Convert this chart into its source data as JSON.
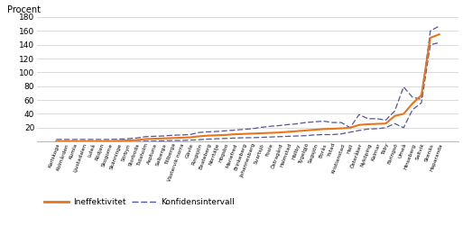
{
  "categories": [
    "Karlskoga",
    "Kolmården",
    "Kumla",
    "Ljustadalen",
    "Luleå",
    "Rödjan",
    "Skogome",
    "Skänninge",
    "Sörbyn",
    "Storboda",
    "Tidaholm",
    "Asptuna",
    "Salberga",
    "Tillberga",
    "Västervik norra",
    "Gävle",
    "Ringsjön",
    "Beateberg",
    "Norrtälje",
    "Högsbo",
    "Mariefred",
    "Brinkeberg",
    "Johannesberg",
    "Svartsjö",
    "Fosie",
    "Östragård",
    "Halmstad",
    "Hällby",
    "Tygelgjö",
    "Sagsjön",
    "Borås",
    "Ystad",
    "Kristianstad",
    "Hall",
    "Österåker",
    "Nyköping",
    "Kalmar",
    "Täby",
    "Färingsö",
    "Umeå",
    "Hinseberg",
    "Saltvik",
    "Skenäs",
    "Haparanda"
  ],
  "ineffektivitet": [
    0.5,
    0.5,
    0.5,
    0.5,
    0.5,
    0.5,
    0.5,
    1.0,
    1.5,
    2.0,
    3.5,
    4.0,
    4.5,
    5.0,
    5.5,
    6.0,
    7.5,
    8.5,
    9.0,
    9.5,
    10.5,
    11.0,
    11.5,
    12.0,
    12.5,
    13.0,
    14.0,
    15.0,
    16.0,
    17.0,
    18.0,
    18.5,
    19.0,
    20.0,
    24.0,
    25.0,
    25.5,
    26.0,
    37.0,
    40.0,
    55.0,
    67.0,
    150.0,
    155.0
  ],
  "ci_upper": [
    3.0,
    3.0,
    3.0,
    3.0,
    3.0,
    3.0,
    3.0,
    3.5,
    4.0,
    5.0,
    7.0,
    7.5,
    8.0,
    9.0,
    9.5,
    10.0,
    13.0,
    14.0,
    14.5,
    15.5,
    16.5,
    17.5,
    18.5,
    20.5,
    22.0,
    23.0,
    24.5,
    25.5,
    27.5,
    28.5,
    29.5,
    27.5,
    27.5,
    20.0,
    39.0,
    33.0,
    33.0,
    31.0,
    44.0,
    79.0,
    64.0,
    61.0,
    160.0,
    167.0
  ],
  "ci_lower": [
    0.0,
    0.0,
    0.0,
    0.0,
    0.0,
    0.0,
    0.0,
    0.0,
    0.0,
    0.0,
    0.5,
    0.5,
    1.0,
    1.5,
    1.5,
    2.0,
    2.5,
    3.5,
    4.0,
    4.5,
    5.0,
    5.5,
    5.5,
    6.0,
    6.5,
    7.0,
    7.5,
    8.0,
    8.5,
    9.5,
    10.0,
    10.0,
    11.0,
    13.5,
    16.0,
    18.0,
    18.5,
    20.0,
    26.0,
    20.0,
    46.0,
    56.0,
    140.0,
    143.0
  ],
  "line_color": "#E8751A",
  "ci_color": "#555599",
  "ylabel": "Procent",
  "ylim": [
    0,
    180
  ],
  "yticks": [
    0,
    20,
    40,
    60,
    80,
    100,
    120,
    140,
    160,
    180
  ],
  "legend_ineffektivitet": "Ineffektivitet",
  "legend_ci": "Konfidensintervall",
  "bg_color": "#FFFFFF",
  "grid_color": "#CCCCCC"
}
